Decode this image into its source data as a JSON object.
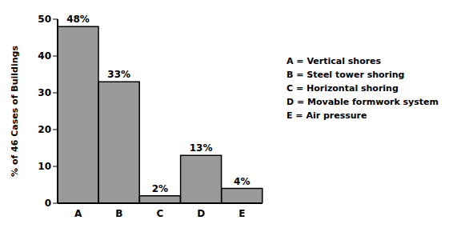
{
  "chart_data": {
    "type": "bar",
    "y_label": "% of 46 Cases of Buildings",
    "categories": [
      "A",
      "B",
      "C",
      "D",
      "E"
    ],
    "values": [
      48,
      33,
      2,
      13,
      4
    ],
    "value_labels": [
      "48%",
      "33%",
      "2%",
      "13%",
      "4%"
    ],
    "data_labels": true,
    "color": "#9a9a9a",
    "ylim": [
      0,
      50
    ],
    "yticks": [
      0,
      10,
      20,
      30,
      40,
      50
    ],
    "grid": false,
    "annotations": [
      "A = Vertical shores",
      "B = Steel tower shoring",
      "C = Horizontal shoring",
      "D = Movable formwork system",
      "E = Air pressure"
    ]
  }
}
